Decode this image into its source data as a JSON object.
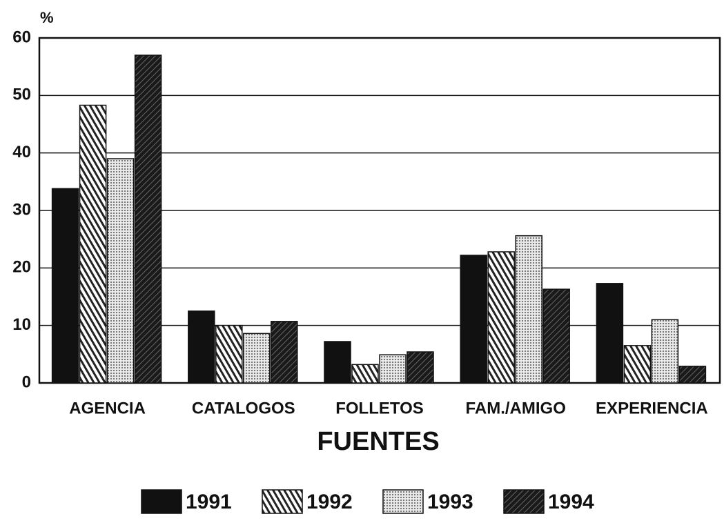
{
  "chart_data": {
    "type": "bar",
    "y_label": "%",
    "x_label": "FUENTES",
    "categories": [
      "AGENCIA",
      "CATALOGOS",
      "FOLLETOS",
      "FAM./AMIGO",
      "EXPERIENCIA"
    ],
    "series": [
      {
        "name": "1991",
        "color": "#111111",
        "values": [
          33.8,
          12.5,
          7.2,
          22.2,
          17.3
        ]
      },
      {
        "name": "1992",
        "color": "#222222",
        "values": [
          48.3,
          10,
          3.2,
          22.8,
          6.5
        ]
      },
      {
        "name": "1993",
        "color": "#bbbbbb",
        "values": [
          39,
          8.6,
          4.9,
          25.6,
          11
        ]
      },
      {
        "name": "1994",
        "color": "#2a2a2a",
        "values": [
          57,
          10.7,
          5.4,
          16.3,
          2.9
        ]
      }
    ],
    "ylim": [
      0,
      60
    ],
    "yticks": [
      0,
      10,
      20,
      30,
      40,
      50,
      60
    ],
    "grid": true,
    "legend": "bottom"
  }
}
